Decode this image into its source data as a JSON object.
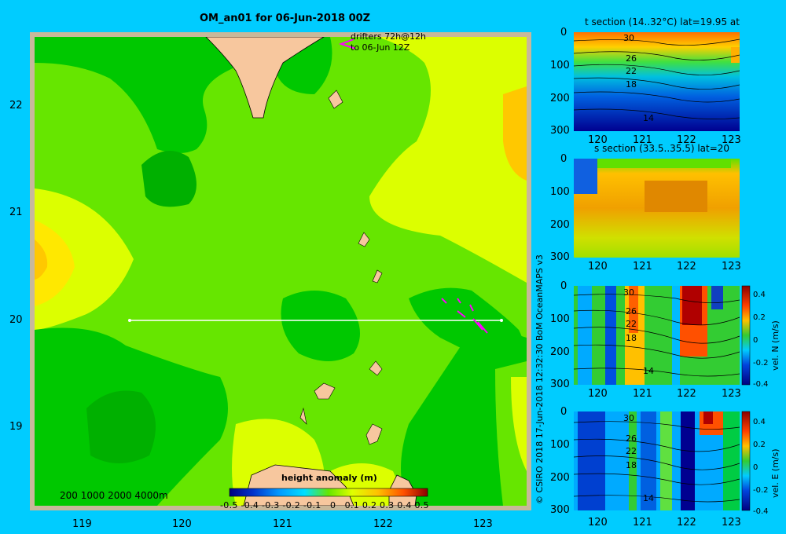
{
  "map": {
    "title": "OM_an01 for 06-Jun-2018 00Z",
    "drifters_line1": "drifters 72h@12h",
    "drifters_line2": "to 06-Jun 12Z",
    "depth_legend": "200  1000  2000  4000m",
    "colorbar_title": "height anomaly  (m)",
    "colorbar_ticks": [
      "-0.5",
      "-0.4",
      "-0.3",
      "-0.2",
      "-0.1",
      "0",
      "0.1",
      "0.2",
      "0.3",
      "0.4",
      "0.5"
    ],
    "lat_ticks": [
      "22",
      "21",
      "20",
      "19"
    ],
    "lon_ticks": [
      "119",
      "120",
      "121",
      "122",
      "123"
    ],
    "colors": {
      "border": "#c8b89a",
      "land": "#f7c79e",
      "ssh_low": "#00c800",
      "ssh_mid": "#66e600",
      "ssh_high": "#dcff00",
      "ssh_orange": "#ffc800",
      "drifter": "#ff00ff"
    }
  },
  "panels": {
    "t_section": {
      "title": "t section (14..32°C) lat=19.95 at",
      "yticks": [
        "0",
        "100",
        "200",
        "300"
      ],
      "xticks": [
        "120",
        "121",
        "122",
        "123"
      ],
      "contour_labels": [
        "30",
        "26",
        "22",
        "18",
        "14"
      ]
    },
    "s_section": {
      "title": "s section (33.5..35.5) lat=20",
      "yticks": [
        "0",
        "100",
        "200",
        "300"
      ],
      "xticks": [
        "120",
        "121",
        "122",
        "123"
      ]
    },
    "vn_section": {
      "yticks": [
        "0",
        "100",
        "200",
        "300"
      ],
      "xticks": [
        "120",
        "121",
        "122",
        "123"
      ],
      "contour_labels": [
        "30",
        "26",
        "22",
        "18",
        "14"
      ],
      "cbar_ticks": [
        "0.4",
        "0.2",
        "0",
        "-0.2",
        "-0.4"
      ],
      "cbar_label": "vel. N  (m/s)"
    },
    "ve_section": {
      "yticks": [
        "0",
        "100",
        "200",
        "300"
      ],
      "xticks": [
        "120",
        "121",
        "122",
        "123"
      ],
      "contour_labels": [
        "30",
        "26",
        "22",
        "18",
        "14"
      ],
      "cbar_ticks": [
        "0.4",
        "0.2",
        "0",
        "-0.2",
        "-0.4"
      ],
      "cbar_label": "vel. E  (m/s)"
    }
  },
  "credit": "© CSIRO 2018   17-Jun-2018 12:32:30 BoM OceanMAPS v3"
}
